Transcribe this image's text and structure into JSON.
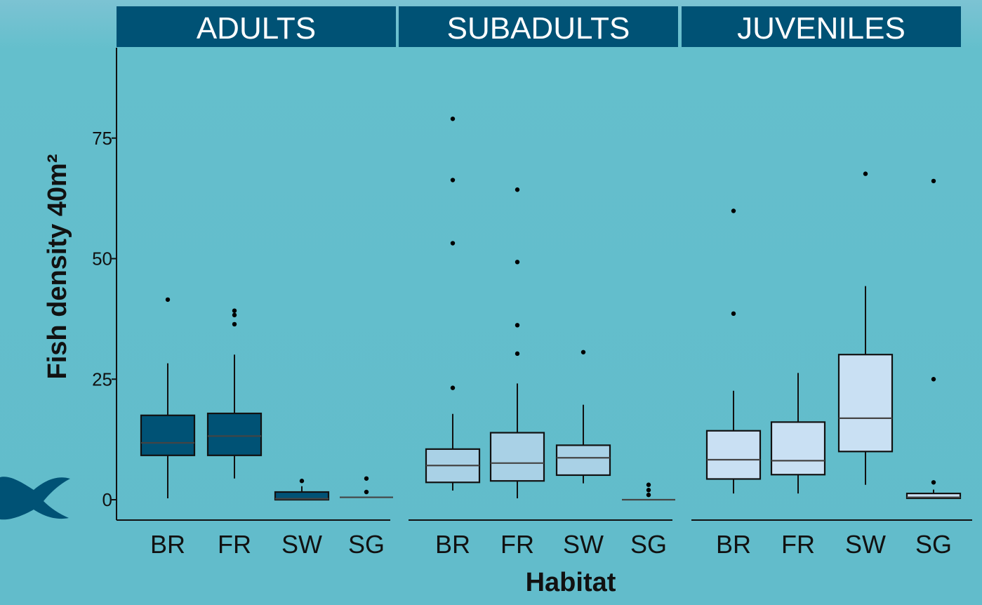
{
  "colors": {
    "background": "#62bccb",
    "header": "#005275",
    "adults_fill": "#005275",
    "subadults_fill": "#a9d1e6",
    "juveniles_fill": "#c9e0f3",
    "stroke": "#111111",
    "median": "#444444"
  },
  "icons": [
    "fish-tail-icon"
  ],
  "chart_data": {
    "type": "boxplot",
    "xlabel": "Habitat",
    "ylabel": "Fish density 40m²",
    "ylim": [
      -4,
      93
    ],
    "yticks": [
      0,
      25,
      50,
      75
    ],
    "grid": false,
    "facets": [
      {
        "label": "ADULTS",
        "fill": "#005275",
        "groups": [
          {
            "category": "BR",
            "whisker_low": 0.3,
            "q1": 9.2,
            "median": 11.8,
            "q3": 17.5,
            "whisker_high": 28.3,
            "outliers": [
              41.5
            ]
          },
          {
            "category": "FR",
            "whisker_low": 4.4,
            "q1": 9.2,
            "median": 13.2,
            "q3": 17.9,
            "whisker_high": 30.1,
            "outliers": [
              36.4,
              38.3,
              39.2
            ]
          },
          {
            "category": "SW",
            "whisker_low": 0,
            "q1": 0,
            "median": 0.2,
            "q3": 1.6,
            "whisker_high": 2.8,
            "outliers": [
              3.9
            ]
          },
          {
            "category": "SG",
            "whisker_low": 0.5,
            "q1": 0.5,
            "median": 0.5,
            "q3": 0.5,
            "whisker_high": 0.5,
            "outliers": [
              1.6,
              4.4
            ]
          }
        ]
      },
      {
        "label": "SUBADULTS",
        "fill": "#a9d1e6",
        "groups": [
          {
            "category": "BR",
            "whisker_low": 1.9,
            "q1": 3.6,
            "median": 7.1,
            "q3": 10.5,
            "whisker_high": 17.8,
            "outliers": [
              23.2,
              53.2,
              66.3,
              79.0
            ]
          },
          {
            "category": "FR",
            "whisker_low": 0.3,
            "q1": 3.9,
            "median": 7.6,
            "q3": 13.9,
            "whisker_high": 24.1,
            "outliers": [
              30.3,
              36.2,
              49.3,
              64.3
            ]
          },
          {
            "category": "SW",
            "whisker_low": 3.4,
            "q1": 5.1,
            "median": 8.7,
            "q3": 11.3,
            "whisker_high": 19.7,
            "outliers": [
              30.6
            ]
          },
          {
            "category": "SG",
            "whisker_low": 0,
            "q1": 0,
            "median": 0,
            "q3": 0,
            "whisker_high": 0,
            "outliers": [
              1.0,
              2.0,
              3.1
            ]
          }
        ]
      },
      {
        "label": "JUVENILES",
        "fill": "#c9e0f3",
        "groups": [
          {
            "category": "BR",
            "whisker_low": 1.3,
            "q1": 4.3,
            "median": 8.3,
            "q3": 14.3,
            "whisker_high": 22.6,
            "outliers": [
              38.6,
              59.9
            ]
          },
          {
            "category": "FR",
            "whisker_low": 1.3,
            "q1": 5.2,
            "median": 8.1,
            "q3": 16.1,
            "whisker_high": 26.3,
            "outliers": []
          },
          {
            "category": "SW",
            "whisker_low": 3.1,
            "q1": 10.0,
            "median": 16.9,
            "q3": 30.1,
            "whisker_high": 44.3,
            "outliers": [
              67.6
            ]
          },
          {
            "category": "SG",
            "whisker_low": 0.3,
            "q1": 0.3,
            "median": 0.5,
            "q3": 1.3,
            "whisker_high": 2.1,
            "outliers": [
              3.6,
              25.0,
              66.1
            ]
          }
        ]
      }
    ]
  }
}
